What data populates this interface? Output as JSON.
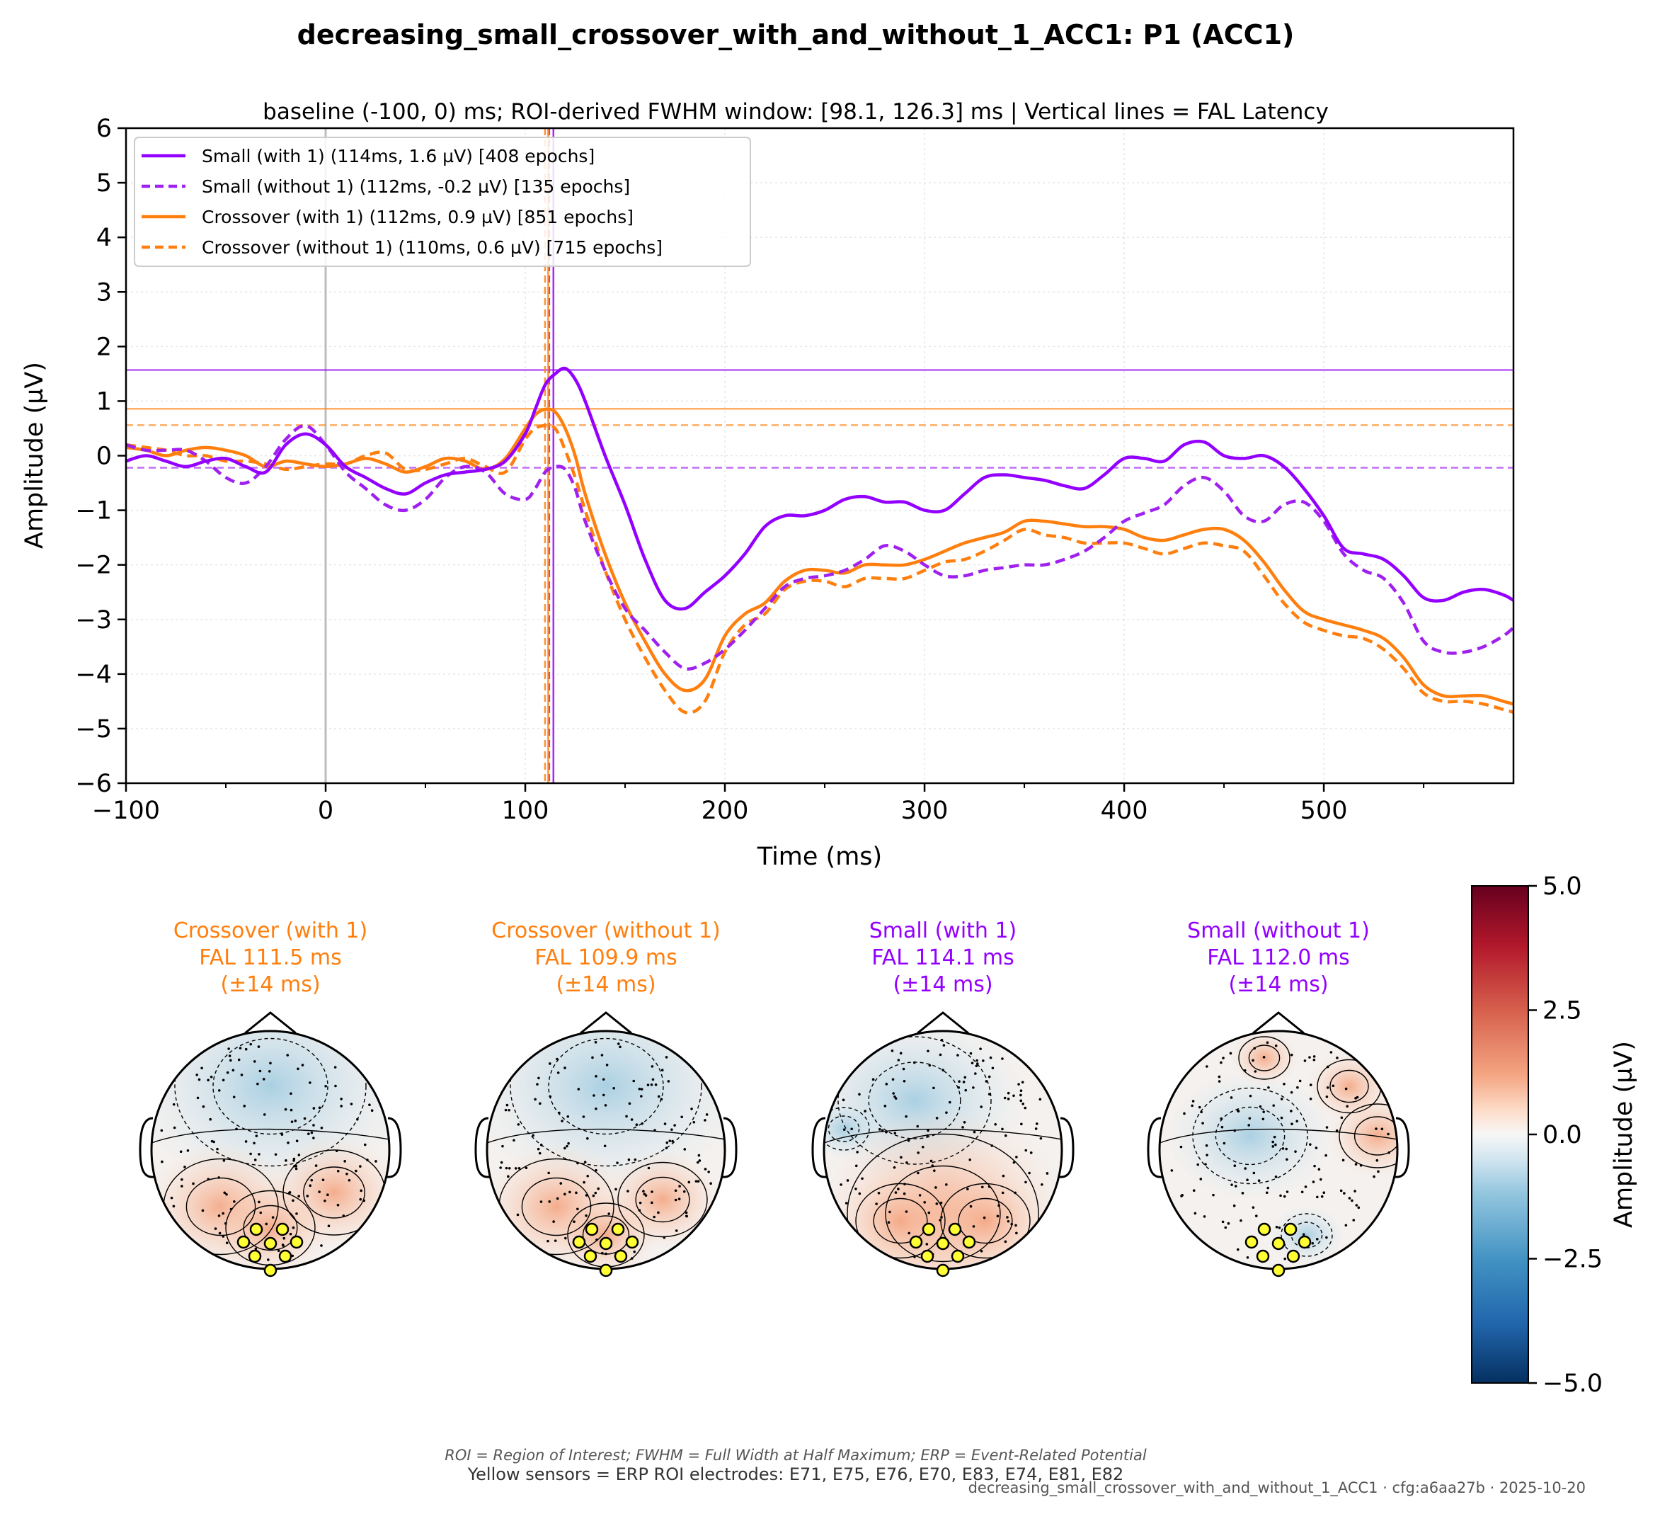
{
  "figure": {
    "title": "decreasing_small_crossover_with_and_without_1_ACC1: P1 (ACC1)",
    "subtitle": "baseline (-100, 0) ms; ROI-derived FWHM window: [98.1, 126.3] ms | Vertical lines = FAL Latency",
    "footnote_1": "ROI = Region of Interest; FWHM = Full Width at Half Maximum; ERP = Event-Related Potential",
    "footnote_2": "Yellow sensors = ERP ROI electrodes: E71, E75, E76, E70, E83, E74, E81, E82",
    "footnote_3": "decreasing_small_crossover_with_and_without_1_ACC1 · cfg:a6aa27b · 2025-10-20"
  },
  "chart_data": [
    {
      "type": "line",
      "xlabel": "Time (ms)",
      "ylabel": "Amplitude (µV)",
      "xlim": [
        -100,
        595
      ],
      "ylim": [
        -6,
        6
      ],
      "xticks": [
        -100,
        0,
        100,
        200,
        300,
        400,
        500
      ],
      "xtick_labels": [
        "−100",
        "0",
        "100",
        "200",
        "300",
        "400",
        "500"
      ],
      "yticks": [
        -6,
        -5,
        -4,
        -3,
        -2,
        -1,
        0,
        1,
        2,
        3,
        4,
        5,
        6
      ],
      "ytick_labels": [
        "−6",
        "−5",
        "−4",
        "−3",
        "−2",
        "−1",
        "0",
        "1",
        "2",
        "3",
        "4",
        "5",
        "6"
      ],
      "grid": true,
      "legend_position": "top-left",
      "series": [
        {
          "name": "Small (with 1) (114ms, 1.6 µV) [408 epochs]",
          "color": "#9400ff",
          "style": "solid",
          "fal_latency": 114.1,
          "fal_amplitude": 1.57,
          "x": [
            -100,
            -90,
            -80,
            -70,
            -60,
            -50,
            -40,
            -30,
            -20,
            -10,
            0,
            10,
            20,
            30,
            40,
            50,
            60,
            70,
            80,
            90,
            100,
            105,
            110,
            115,
            120,
            125,
            130,
            140,
            150,
            160,
            170,
            180,
            190,
            200,
            210,
            220,
            230,
            240,
            250,
            260,
            270,
            280,
            290,
            300,
            310,
            320,
            330,
            340,
            350,
            360,
            370,
            380,
            390,
            400,
            410,
            420,
            430,
            440,
            450,
            460,
            470,
            480,
            490,
            500,
            510,
            520,
            530,
            540,
            550,
            560,
            570,
            580,
            590,
            595
          ],
          "y": [
            -0.1,
            0.0,
            -0.1,
            -0.2,
            -0.1,
            -0.05,
            -0.2,
            -0.3,
            0.2,
            0.4,
            0.2,
            -0.2,
            -0.4,
            -0.6,
            -0.7,
            -0.5,
            -0.35,
            -0.3,
            -0.25,
            -0.1,
            0.4,
            0.85,
            1.3,
            1.5,
            1.6,
            1.4,
            1.0,
            0.0,
            -0.9,
            -1.9,
            -2.65,
            -2.8,
            -2.5,
            -2.2,
            -1.8,
            -1.3,
            -1.1,
            -1.1,
            -1.0,
            -0.8,
            -0.75,
            -0.85,
            -0.85,
            -1.0,
            -1.0,
            -0.7,
            -0.4,
            -0.35,
            -0.4,
            -0.45,
            -0.55,
            -0.6,
            -0.35,
            -0.05,
            -0.05,
            -0.1,
            0.2,
            0.25,
            0.0,
            -0.05,
            0.0,
            -0.2,
            -0.6,
            -1.1,
            -1.7,
            -1.8,
            -1.9,
            -2.2,
            -2.6,
            -2.65,
            -2.5,
            -2.45,
            -2.55,
            -2.65
          ]
        },
        {
          "name": "Small (without 1) (112ms, -0.2 µV) [135 epochs]",
          "color": "#a020f0",
          "style": "dashed",
          "fal_latency": 112.0,
          "fal_amplitude": -0.22,
          "x": [
            -100,
            -90,
            -80,
            -70,
            -60,
            -50,
            -40,
            -30,
            -20,
            -10,
            0,
            10,
            20,
            30,
            40,
            50,
            60,
            70,
            80,
            90,
            100,
            105,
            110,
            115,
            120,
            125,
            130,
            140,
            150,
            160,
            170,
            180,
            190,
            200,
            210,
            220,
            230,
            240,
            250,
            260,
            270,
            280,
            290,
            300,
            310,
            320,
            330,
            340,
            350,
            360,
            370,
            380,
            390,
            400,
            410,
            420,
            430,
            440,
            450,
            460,
            470,
            480,
            490,
            500,
            510,
            520,
            530,
            540,
            550,
            560,
            570,
            580,
            590,
            595
          ],
          "y": [
            0.2,
            0.1,
            0.1,
            0.1,
            -0.1,
            -0.4,
            -0.5,
            -0.2,
            0.3,
            0.55,
            0.2,
            -0.3,
            -0.6,
            -0.9,
            -1.0,
            -0.8,
            -0.4,
            -0.2,
            -0.3,
            -0.7,
            -0.8,
            -0.6,
            -0.3,
            -0.2,
            -0.25,
            -0.6,
            -1.2,
            -2.1,
            -2.8,
            -3.2,
            -3.6,
            -3.9,
            -3.8,
            -3.55,
            -3.2,
            -2.8,
            -2.4,
            -2.25,
            -2.2,
            -2.1,
            -1.9,
            -1.65,
            -1.75,
            -2.0,
            -2.2,
            -2.2,
            -2.1,
            -2.05,
            -2.0,
            -2.0,
            -1.9,
            -1.75,
            -1.5,
            -1.2,
            -1.05,
            -0.9,
            -0.55,
            -0.4,
            -0.65,
            -1.1,
            -1.2,
            -0.9,
            -0.85,
            -1.2,
            -1.8,
            -2.1,
            -2.25,
            -2.7,
            -3.4,
            -3.6,
            -3.6,
            -3.5,
            -3.3,
            -3.15
          ]
        },
        {
          "name": "Crossover (with 1) (112ms, 0.9 µV) [851 epochs]",
          "color": "#ff7f0e",
          "style": "solid",
          "fal_latency": 111.5,
          "fal_amplitude": 0.86,
          "x": [
            -100,
            -90,
            -80,
            -70,
            -60,
            -50,
            -40,
            -30,
            -20,
            -10,
            0,
            10,
            20,
            30,
            40,
            50,
            60,
            70,
            80,
            90,
            100,
            105,
            110,
            115,
            120,
            125,
            130,
            140,
            150,
            160,
            170,
            180,
            190,
            200,
            210,
            220,
            230,
            240,
            250,
            260,
            270,
            280,
            290,
            300,
            310,
            320,
            330,
            340,
            350,
            360,
            370,
            380,
            390,
            400,
            410,
            420,
            430,
            440,
            450,
            460,
            470,
            480,
            490,
            500,
            510,
            520,
            530,
            540,
            550,
            560,
            570,
            580,
            590,
            595
          ],
          "y": [
            0.15,
            0.1,
            0.0,
            0.1,
            0.15,
            0.1,
            0.0,
            -0.2,
            -0.1,
            -0.15,
            -0.2,
            -0.15,
            -0.05,
            -0.15,
            -0.3,
            -0.2,
            -0.05,
            -0.1,
            -0.25,
            -0.05,
            0.5,
            0.75,
            0.85,
            0.8,
            0.5,
            0.0,
            -0.7,
            -1.8,
            -2.7,
            -3.4,
            -4.0,
            -4.3,
            -4.1,
            -3.3,
            -2.9,
            -2.7,
            -2.3,
            -2.1,
            -2.1,
            -2.15,
            -2.0,
            -2.0,
            -2.0,
            -1.9,
            -1.75,
            -1.6,
            -1.5,
            -1.4,
            -1.2,
            -1.2,
            -1.25,
            -1.3,
            -1.3,
            -1.35,
            -1.5,
            -1.55,
            -1.45,
            -1.35,
            -1.35,
            -1.55,
            -1.95,
            -2.45,
            -2.85,
            -3.0,
            -3.1,
            -3.2,
            -3.35,
            -3.7,
            -4.2,
            -4.4,
            -4.4,
            -4.4,
            -4.5,
            -4.55
          ]
        },
        {
          "name": "Crossover (without 1) (110ms, 0.6 µV) [715 epochs]",
          "color": "#ff7f0e",
          "style": "dashed",
          "fal_latency": 109.9,
          "fal_amplitude": 0.56,
          "x": [
            -100,
            -90,
            -80,
            -70,
            -60,
            -50,
            -40,
            -30,
            -20,
            -10,
            0,
            10,
            20,
            30,
            40,
            50,
            60,
            70,
            80,
            90,
            100,
            105,
            110,
            115,
            120,
            125,
            130,
            140,
            150,
            160,
            170,
            180,
            190,
            200,
            210,
            220,
            230,
            240,
            250,
            260,
            270,
            280,
            290,
            300,
            310,
            320,
            330,
            340,
            350,
            360,
            370,
            380,
            390,
            400,
            410,
            420,
            430,
            440,
            450,
            460,
            470,
            480,
            490,
            500,
            510,
            520,
            530,
            540,
            550,
            560,
            570,
            580,
            590,
            595
          ],
          "y": [
            0.2,
            0.15,
            0.1,
            0.0,
            0.0,
            -0.1,
            -0.1,
            -0.15,
            -0.25,
            -0.2,
            -0.15,
            -0.15,
            0.0,
            0.05,
            -0.25,
            -0.25,
            -0.15,
            -0.05,
            -0.2,
            -0.3,
            0.3,
            0.5,
            0.55,
            0.5,
            0.1,
            -0.4,
            -1.0,
            -2.1,
            -3.0,
            -3.7,
            -4.3,
            -4.7,
            -4.5,
            -3.6,
            -3.1,
            -2.9,
            -2.45,
            -2.3,
            -2.3,
            -2.4,
            -2.25,
            -2.25,
            -2.25,
            -2.1,
            -1.95,
            -1.9,
            -1.75,
            -1.55,
            -1.35,
            -1.45,
            -1.5,
            -1.6,
            -1.6,
            -1.6,
            -1.7,
            -1.8,
            -1.7,
            -1.6,
            -1.65,
            -1.75,
            -2.2,
            -2.7,
            -3.05,
            -3.2,
            -3.3,
            -3.35,
            -3.55,
            -3.9,
            -4.35,
            -4.5,
            -4.5,
            -4.55,
            -4.65,
            -4.7
          ]
        }
      ]
    },
    {
      "type": "heatmap",
      "name": "topomaps",
      "colorbar_label": "Amplitude (µV)",
      "colorbar_range": [
        -5,
        5
      ],
      "colorbar_ticks": [
        5,
        2.5,
        0,
        -2.5,
        -5
      ],
      "colorbar_tick_labels": [
        "5.0",
        "2.5",
        "0.0",
        "−2.5",
        "−5.0"
      ],
      "colormap": "RdBu_r",
      "maps": [
        {
          "title_line_1": "Crossover (with 1)",
          "title_line_2": "FAL 111.5 ms",
          "title_line_3": "(±14 ms)",
          "color": "#ff7f0e"
        },
        {
          "title_line_1": "Crossover (without 1)",
          "title_line_2": "FAL 109.9 ms",
          "title_line_3": "(±14 ms)",
          "color": "#ff7f0e"
        },
        {
          "title_line_1": "Small (with 1)",
          "title_line_2": "FAL 114.1 ms",
          "title_line_3": "(±14 ms)",
          "color": "#9400ff"
        },
        {
          "title_line_1": "Small (without 1)",
          "title_line_2": "FAL 112.0 ms",
          "title_line_3": "(±14 ms)",
          "color": "#9400ff"
        }
      ]
    }
  ]
}
